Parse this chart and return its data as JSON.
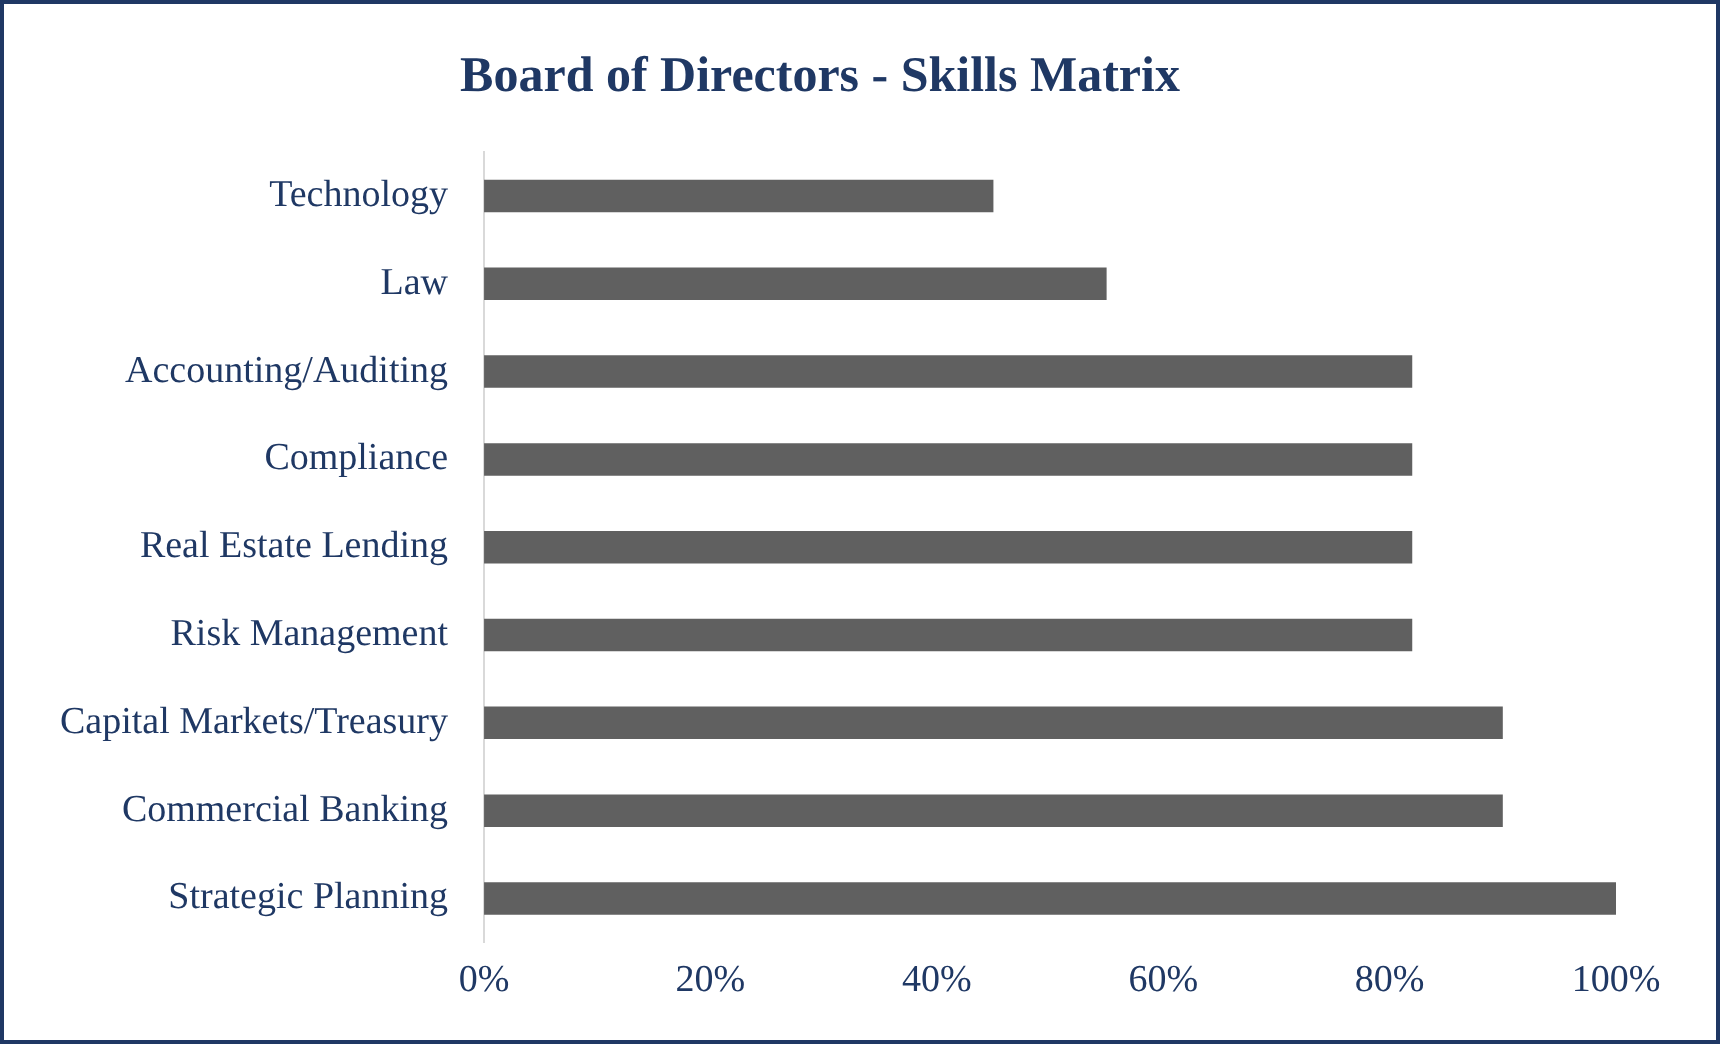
{
  "chart_data": {
    "type": "bar",
    "orientation": "horizontal",
    "title": "Board of Directors - Skills Matrix",
    "categories": [
      "Technology",
      "Law",
      "Accounting/Auditing",
      "Compliance",
      "Real Estate Lending",
      "Risk Management",
      "Capital Markets/Treasury",
      "Commercial Banking",
      "Strategic Planning"
    ],
    "values": [
      45,
      55,
      82,
      82,
      82,
      82,
      90,
      90,
      100
    ],
    "color": "#606060",
    "xlim": [
      0,
      100
    ],
    "xticks": [
      {
        "value": 0,
        "label": "0%"
      },
      {
        "value": 20,
        "label": "20%"
      },
      {
        "value": 40,
        "label": "40%"
      },
      {
        "value": 60,
        "label": "60%"
      },
      {
        "value": 80,
        "label": "80%"
      },
      {
        "value": 100,
        "label": "100%"
      }
    ],
    "grid": false,
    "legend": false
  }
}
